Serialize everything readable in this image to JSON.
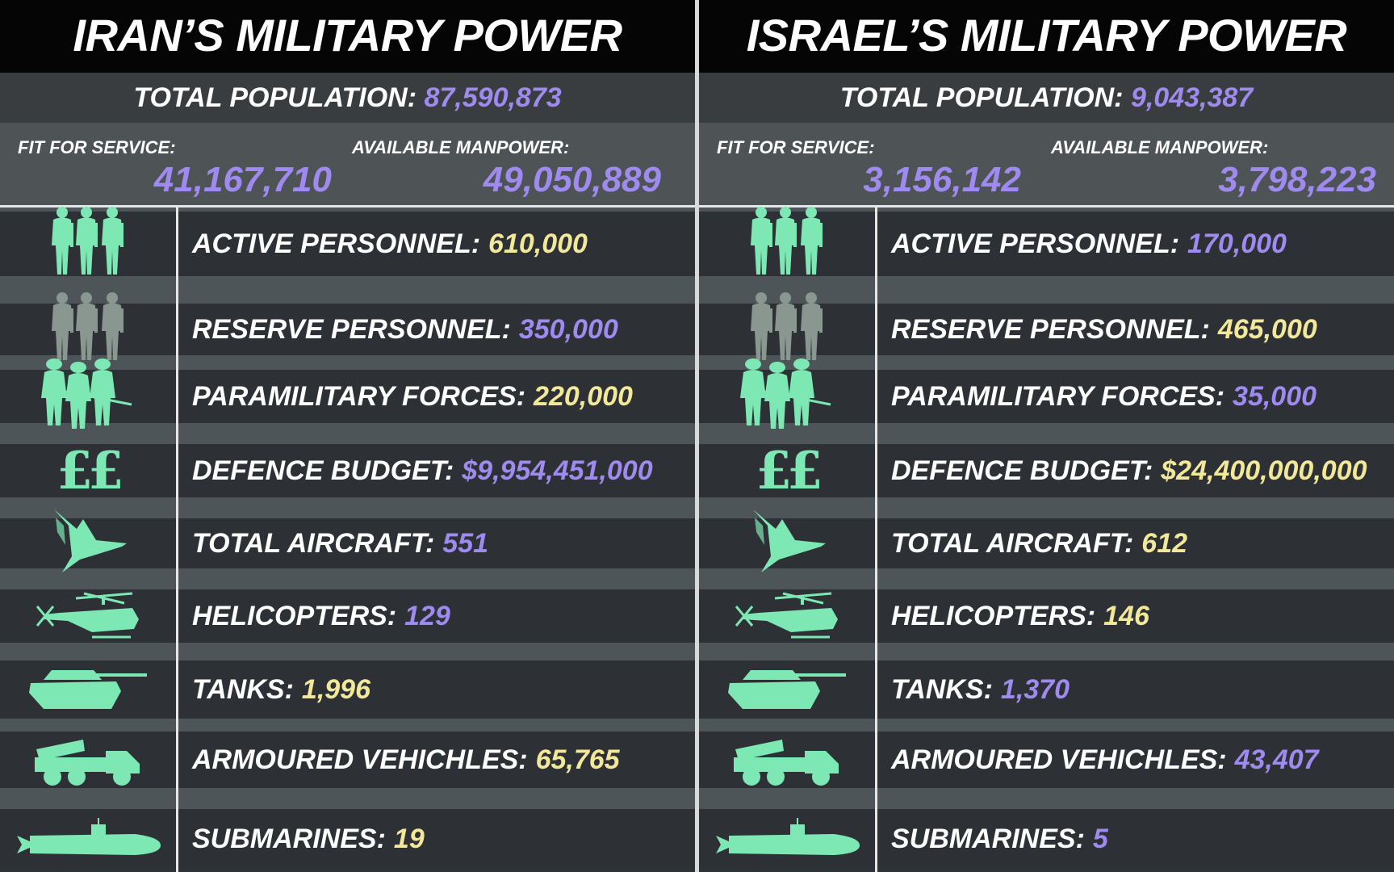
{
  "colors": {
    "accent_purple": "#9f8bef",
    "accent_yellow": "#f2e89a",
    "icon_green": "#7ee8b4",
    "icon_grey": "#8a9690"
  },
  "panels": [
    {
      "title": "IRAN’S MILITARY POWER",
      "population_label": "TOTAL POPULATION:",
      "population_value": "87,590,873",
      "fit_label": "FIT FOR SERVICE:",
      "fit_value": "41,167,710",
      "manpower_label": "AVAILABLE MANPOWER:",
      "manpower_value": "49,050,889",
      "stats": [
        {
          "icon": "soldiers-icon",
          "label": "ACTIVE PERSONNEL:",
          "value": "610,000",
          "value_color": "yellow"
        },
        {
          "icon": "reserve-soldiers-icon",
          "label": "RESERVE PERSONNEL:",
          "value": "350,000",
          "value_color": "purple"
        },
        {
          "icon": "paramilitary-icon",
          "label": "PARAMILITARY FORCES:",
          "value": "220,000",
          "value_color": "yellow"
        },
        {
          "icon": "pound-sign-icon",
          "label": "DEFENCE BUDGET:",
          "value": "$9,954,451,000",
          "value_color": "purple"
        },
        {
          "icon": "jet-aircraft-icon",
          "label": "TOTAL AIRCRAFT:",
          "value": "551",
          "value_color": "purple"
        },
        {
          "icon": "helicopter-icon",
          "label": "HELICOPTERS:",
          "value": "129",
          "value_color": "purple"
        },
        {
          "icon": "tank-icon",
          "label": "TANKS:",
          "value": "1,996",
          "value_color": "yellow"
        },
        {
          "icon": "armoured-vehicle-icon",
          "label": "ARMOURED VEHICHLES:",
          "value": "65,765",
          "value_color": "yellow"
        },
        {
          "icon": "submarine-icon",
          "label": "SUBMARINES:",
          "value": "19",
          "value_color": "yellow"
        }
      ]
    },
    {
      "title": "ISRAEL’S MILITARY POWER",
      "population_label": "TOTAL POPULATION:",
      "population_value": "9,043,387",
      "fit_label": "FIT FOR SERVICE:",
      "fit_value": "3,156,142",
      "manpower_label": "AVAILABLE MANPOWER:",
      "manpower_value": "3,798,223",
      "stats": [
        {
          "icon": "soldiers-icon",
          "label": "ACTIVE PERSONNEL:",
          "value": "170,000",
          "value_color": "purple"
        },
        {
          "icon": "reserve-soldiers-icon",
          "label": "RESERVE PERSONNEL:",
          "value": "465,000",
          "value_color": "yellow"
        },
        {
          "icon": "paramilitary-icon",
          "label": "PARAMILITARY FORCES:",
          "value": "35,000",
          "value_color": "purple"
        },
        {
          "icon": "pound-sign-icon",
          "label": "DEFENCE BUDGET:",
          "value": "$24,400,000,000",
          "value_color": "yellow"
        },
        {
          "icon": "jet-aircraft-icon",
          "label": "TOTAL AIRCRAFT:",
          "value": "612",
          "value_color": "yellow"
        },
        {
          "icon": "helicopter-icon",
          "label": "HELICOPTERS:",
          "value": "146",
          "value_color": "yellow"
        },
        {
          "icon": "tank-icon",
          "label": "TANKS:",
          "value": "1,370",
          "value_color": "purple"
        },
        {
          "icon": "armoured-vehicle-icon",
          "label": "ARMOURED VEHICHLES:",
          "value": "43,407",
          "value_color": "purple"
        },
        {
          "icon": "submarine-icon",
          "label": "SUBMARINES:",
          "value": "5",
          "value_color": "purple"
        }
      ]
    }
  ]
}
